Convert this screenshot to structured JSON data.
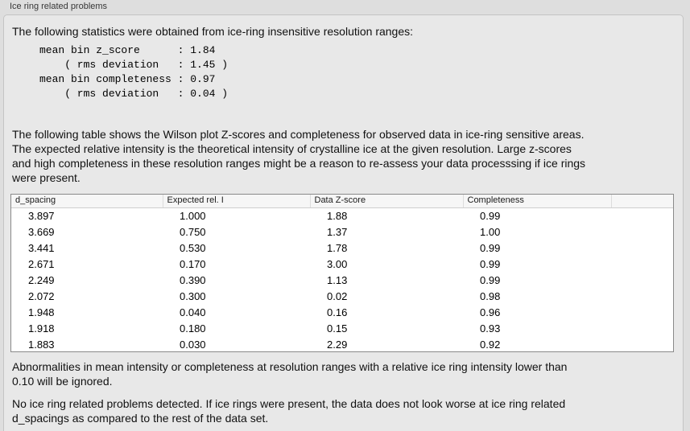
{
  "panel": {
    "title": "Ice ring related problems"
  },
  "intro_text": "The following statistics were obtained from ice-ring insensitive resolution ranges:",
  "stats_block": "mean bin z_score      : 1.84\n    ( rms deviation   : 1.45 )\nmean bin completeness : 0.97\n    ( rms deviation   : 0.04 )",
  "stats": {
    "mean_bin_z_score": "1.84",
    "z_score_rms_deviation": "1.45",
    "mean_bin_completeness": "0.97",
    "completeness_rms_deviation": "0.04"
  },
  "description": "The following table shows the Wilson plot Z-scores and completeness for observed data in ice-ring sensitive areas.\nThe expected relative intensity is the theoretical intensity of crystalline ice at the given resolution. Large z-scores\nand high completeness in these resolution ranges might be a reason to re-assess your data processsing if ice rings\nwere present.",
  "table": {
    "columns": [
      "d_spacing",
      "Expected rel. I",
      "Data Z-score",
      "Completeness",
      ""
    ],
    "rows": [
      [
        "3.897",
        "1.000",
        "1.88",
        "0.99",
        ""
      ],
      [
        "3.669",
        "0.750",
        "1.37",
        "1.00",
        ""
      ],
      [
        "3.441",
        "0.530",
        "1.78",
        "0.99",
        ""
      ],
      [
        "2.671",
        "0.170",
        "3.00",
        "0.99",
        ""
      ],
      [
        "2.249",
        "0.390",
        "1.13",
        "0.99",
        ""
      ],
      [
        "2.072",
        "0.300",
        "0.02",
        "0.98",
        ""
      ],
      [
        "1.948",
        "0.040",
        "0.16",
        "0.96",
        ""
      ],
      [
        "1.918",
        "0.180",
        "0.15",
        "0.93",
        ""
      ],
      [
        "1.883",
        "0.030",
        "2.29",
        "0.92",
        ""
      ]
    ]
  },
  "notes": {
    "ignore_rule": "Abnormalities in mean intensity or completeness at resolution ranges with a relative ice ring intensity lower than\n0.10 will be ignored.",
    "conclusion": "No ice ring related problems detected. If ice rings were present, the data does not look worse at ice ring related\nd_spacings as compared to the rest of the data set."
  },
  "colors": {
    "page_background": "#dedede",
    "groupbox_background": "#e8e8e8",
    "groupbox_border": "#c4c4c4",
    "table_border": "#8a8a8a",
    "table_header_background": "#f6f6f6",
    "text": "#000000"
  }
}
